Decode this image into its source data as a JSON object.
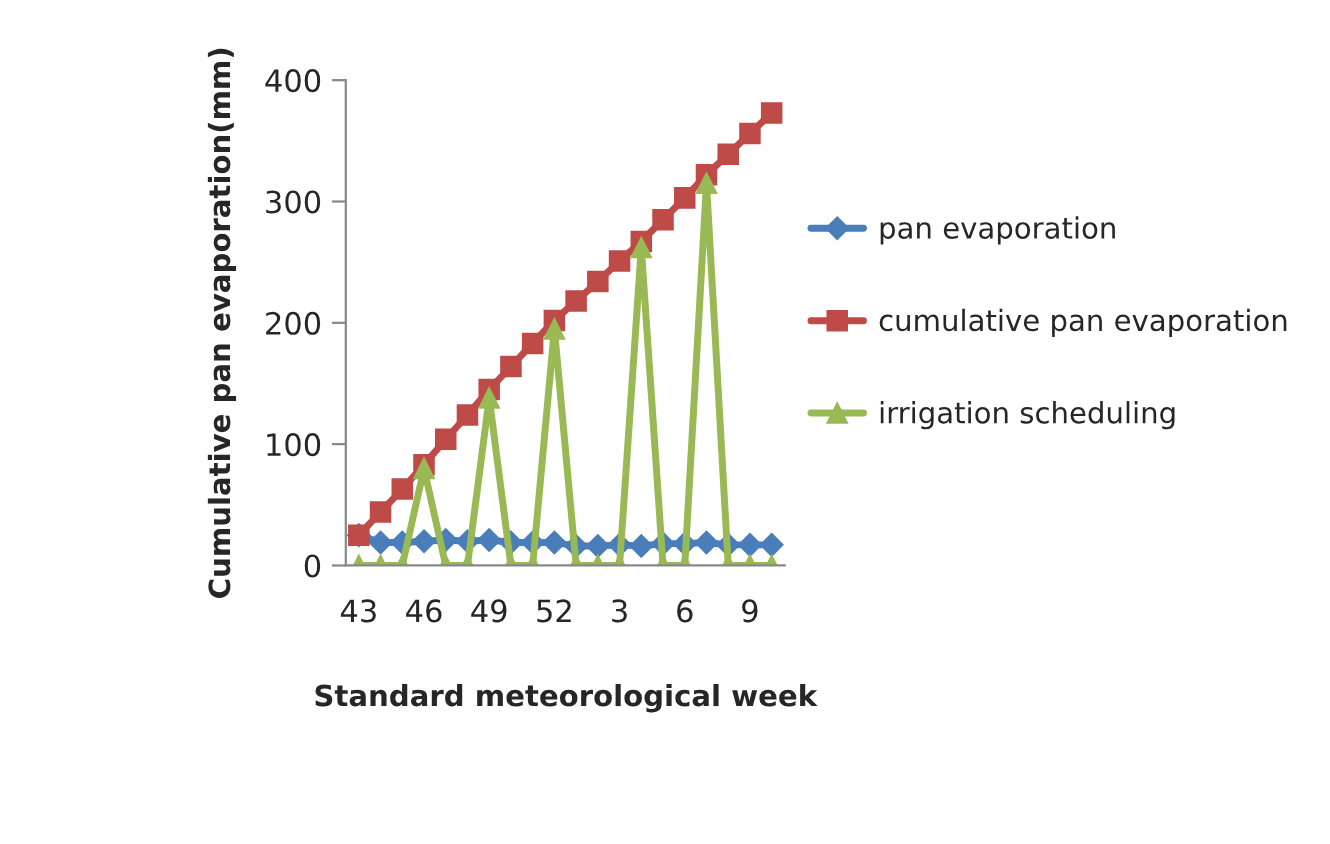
{
  "chart_data": {
    "type": "line",
    "xlabel": "Standard meteorological week",
    "ylabel": "Cumulative pan evaporation(mm)",
    "categories": [
      "43",
      null,
      null,
      "46",
      null,
      null,
      "49",
      null,
      null,
      "52",
      null,
      null,
      "3",
      null,
      null,
      "6",
      null,
      null,
      "9",
      null
    ],
    "series": [
      {
        "name": "pan evaporation",
        "color": "#4a7ebb",
        "marker": "diamond",
        "values": [
          25,
          19,
          19,
          20,
          21,
          20,
          21,
          19,
          19,
          19,
          16,
          16,
          17,
          16,
          18,
          18,
          19,
          17,
          17,
          17
        ]
      },
      {
        "name": "cumulative pan evaporation",
        "color": "#be4b48",
        "marker": "square",
        "values": [
          25,
          44,
          63,
          83,
          104,
          124,
          145,
          164,
          183,
          202,
          218,
          234,
          251,
          267,
          285,
          303,
          322,
          339,
          356,
          373
        ]
      },
      {
        "name": "irrigation scheduling",
        "color": "#98b954",
        "marker": "triangle",
        "values": [
          0,
          0,
          0,
          80,
          0,
          0,
          138,
          0,
          0,
          195,
          0,
          0,
          0,
          262,
          0,
          0,
          315,
          0,
          0,
          0
        ]
      }
    ],
    "ylim": [
      0,
      400
    ],
    "yticks": [
      0,
      100,
      200,
      300,
      400
    ],
    "grid": false,
    "legend": "right"
  }
}
